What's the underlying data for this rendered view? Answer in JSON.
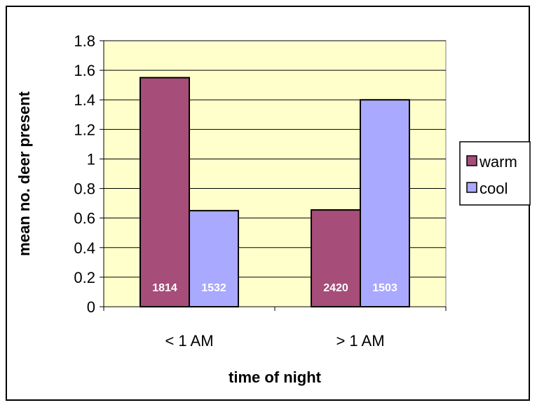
{
  "chart_data": {
    "type": "bar",
    "categories": [
      "< 1 AM",
      "> 1 AM"
    ],
    "series": [
      {
        "name": "warm",
        "values": [
          1.55,
          0.655
        ],
        "labels": [
          "1814",
          "2420"
        ],
        "color": "#a64d79"
      },
      {
        "name": "cool",
        "values": [
          0.65,
          1.4
        ],
        "labels": [
          "1532",
          "1503"
        ],
        "color": "#a9a9ff"
      }
    ],
    "xlabel": "time of night",
    "ylabel": "mean no. deer present",
    "ylim": [
      0,
      1.8
    ],
    "yticks": [
      "0",
      "0.2",
      "0.4",
      "0.6",
      "0.8",
      "1",
      "1.2",
      "1.4",
      "1.6",
      "1.8"
    ],
    "grid": true,
    "legend": "right",
    "plot_background": "#ffffcc"
  }
}
